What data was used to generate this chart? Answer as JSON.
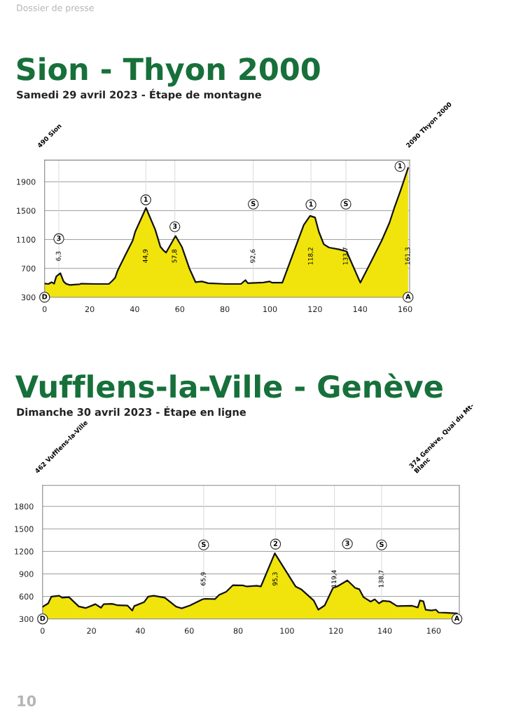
{
  "chart_data": [
    {
      "type": "area",
      "title": "Sion - Thyon 2000",
      "subtitle": "Samedi 29 avril 2023 - Étape de montagne",
      "xlim": [
        0,
        162
      ],
      "ylim": [
        300,
        2200
      ],
      "xticks": [
        0,
        20,
        40,
        60,
        80,
        100,
        120,
        140,
        160
      ],
      "yticks": [
        300,
        700,
        1100,
        1500,
        1900
      ],
      "grid": "y",
      "legend": false,
      "series": [
        {
          "color": "#f0e40c",
          "x": [
            0,
            1.7,
            3.1,
            4.2,
            5.2,
            7.0,
            8.4,
            9.5,
            11.2,
            15.6,
            16.2,
            23.4,
            28.5,
            30.1,
            31.3,
            32.4,
            35.7,
            39.1,
            40.2,
            45.0,
            49.1,
            51.4,
            52.8,
            53.9,
            58.1,
            60.9,
            64.2,
            67.0,
            69.8,
            72.6,
            80.4,
            87.1,
            89.1,
            90.2,
            97.1,
            99.9,
            101.0,
            105.5,
            115.0,
            117.8,
            120.0,
            121.7,
            123.9,
            126.2,
            130.6,
            134.0,
            140.1,
            144.0,
            149.6,
            153.0,
            155.2,
            158.0,
            161.3
          ],
          "values": [
            490,
            484,
            509,
            488,
            589,
            634,
            519,
            488,
            470,
            481,
            488,
            484,
            484,
            530,
            571,
            669,
            877,
            1086,
            1208,
            1538,
            1236,
            999,
            947,
            919,
            1149,
            999,
            703,
            509,
            519,
            495,
            484,
            484,
            537,
            495,
            505,
            519,
            502,
            502,
            1302,
            1427,
            1406,
            1208,
            1034,
            989,
            964,
            936,
            502,
            738,
            1086,
            1329,
            1538,
            1782,
            2090
          ]
        }
      ],
      "ref_lines": [
        {
          "axis": "x",
          "value": 6.3,
          "label": "6,3"
        },
        {
          "axis": "x",
          "value": 44.9,
          "label": "44,9"
        },
        {
          "axis": "x",
          "value": 57.8,
          "label": "57,8"
        },
        {
          "axis": "x",
          "value": 92.6,
          "label": "92,6"
        },
        {
          "axis": "x",
          "value": 118.2,
          "label": "118,2"
        },
        {
          "axis": "x",
          "value": 133.7,
          "label": "133,7"
        },
        {
          "axis": "x",
          "value": 161.3,
          "label": "161,3"
        }
      ],
      "annotations": [
        "Dossier de presse",
        "490 Sion",
        "2090 Thyon 2000",
        {
          "text": "D",
          "x": 0,
          "y": 300
        },
        {
          "text": "A",
          "x": 161.3,
          "y": 300
        },
        {
          "text": "3",
          "x": 6.3,
          "y": 1110
        },
        {
          "text": "1",
          "x": 44.9,
          "y": 1650
        },
        {
          "text": "3",
          "x": 57.8,
          "y": 1277
        },
        {
          "text": "S",
          "x": 92.6,
          "y": 1590
        },
        {
          "text": "1",
          "x": 118.2,
          "y": 1583
        },
        {
          "text": "S",
          "x": 133.7,
          "y": 1590
        },
        {
          "text": "1",
          "x": 157.7,
          "y": 2112
        }
      ]
    },
    {
      "type": "area",
      "title": "Vufflens-la-Ville - Genève",
      "subtitle": "Dimanche 30 avril 2023 - Étape en ligne",
      "xlim": [
        0,
        170.5
      ],
      "ylim": [
        300,
        2080
      ],
      "xticks": [
        0,
        20,
        40,
        60,
        80,
        100,
        120,
        140,
        160
      ],
      "yticks": [
        300,
        600,
        900,
        1200,
        1500,
        1800
      ],
      "grid": "y",
      "legend": false,
      "series": [
        {
          "color": "#f0e40c",
          "x": [
            0,
            2.3,
            3.6,
            6.8,
            8.0,
            10.8,
            14.8,
            17.6,
            21.6,
            23.9,
            25.0,
            28.4,
            30.7,
            34.7,
            36.7,
            37.5,
            41.5,
            43.2,
            45.5,
            50.0,
            54.6,
            56.9,
            60.3,
            65.4,
            66.5,
            70.5,
            72.2,
            75.1,
            77.9,
            81.9,
            83.6,
            87.6,
            89.3,
            95.0,
            103.5,
            105.8,
            110.9,
            112.8,
            115.4,
            118.8,
            120.5,
            124.7,
            127.9,
            129.6,
            131.3,
            134.2,
            135.9,
            137.6,
            139.3,
            142.1,
            145.0,
            151.2,
            153.5,
            154.4,
            155.8,
            156.7,
            159.2,
            160.9,
            162.0,
            164.9,
            169.5
          ],
          "values": [
            462,
            508,
            598,
            609,
            583,
            590,
            467,
            445,
            497,
            449,
            497,
            501,
            482,
            479,
            412,
            471,
            523,
            598,
            609,
            583,
            464,
            441,
            479,
            561,
            568,
            564,
            620,
            661,
            750,
            747,
            732,
            743,
            732,
            1175,
            732,
            695,
            546,
            423,
            479,
            713,
            732,
            814,
            713,
            695,
            590,
            531,
            561,
            508,
            542,
            531,
            471,
            475,
            453,
            546,
            534,
            423,
            412,
            423,
            386,
            382,
            374
          ]
        }
      ],
      "ref_lines": [
        {
          "axis": "x",
          "value": 65.9,
          "label": "65,9"
        },
        {
          "axis": "x",
          "value": 95.3,
          "label": "95,3"
        },
        {
          "axis": "x",
          "value": 119.4,
          "label": "119,4"
        },
        {
          "axis": "x",
          "value": 138.7,
          "label": "138,7"
        }
      ],
      "annotations": [
        "462 Vufflens-la-Ville",
        "374 Genève, Quai du Mt-\nBlanc",
        "10",
        {
          "text": "D",
          "x": 0,
          "y": 300
        },
        {
          "text": "A",
          "x": 169.5,
          "y": 300
        },
        {
          "text": "S",
          "x": 65.9,
          "y": 1286
        },
        {
          "text": "2",
          "x": 95.3,
          "y": 1297
        },
        {
          "text": "3",
          "x": 124.7,
          "y": 1301
        },
        {
          "text": "S",
          "x": 138.7,
          "y": 1286
        }
      ]
    }
  ]
}
